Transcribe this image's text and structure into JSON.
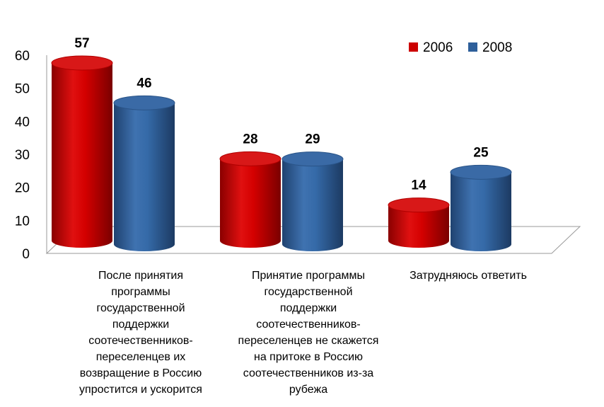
{
  "chart_data": {
    "type": "bar",
    "categories": [
      "После принятия программы государственной поддержки соотечественников-переселенцев их возвращение в Россию упростится и ускорится",
      "Принятие программы государственной поддержки соотечественников-переселенцев не скажется на притоке в Россию соотечественников из-за рубежа",
      "Затрудняюсь ответить"
    ],
    "series": [
      {
        "name": "2006",
        "values": [
          57,
          28,
          14
        ],
        "color": "#cc0000"
      },
      {
        "name": "2008",
        "values": [
          46,
          29,
          25
        ],
        "color": "#2e5f9a"
      }
    ],
    "yticks": [
      0,
      10,
      20,
      30,
      40,
      50,
      60
    ],
    "ylim": [
      0,
      60
    ],
    "legend_position": "top-right",
    "style": "3d-cylinder",
    "grid": false
  }
}
